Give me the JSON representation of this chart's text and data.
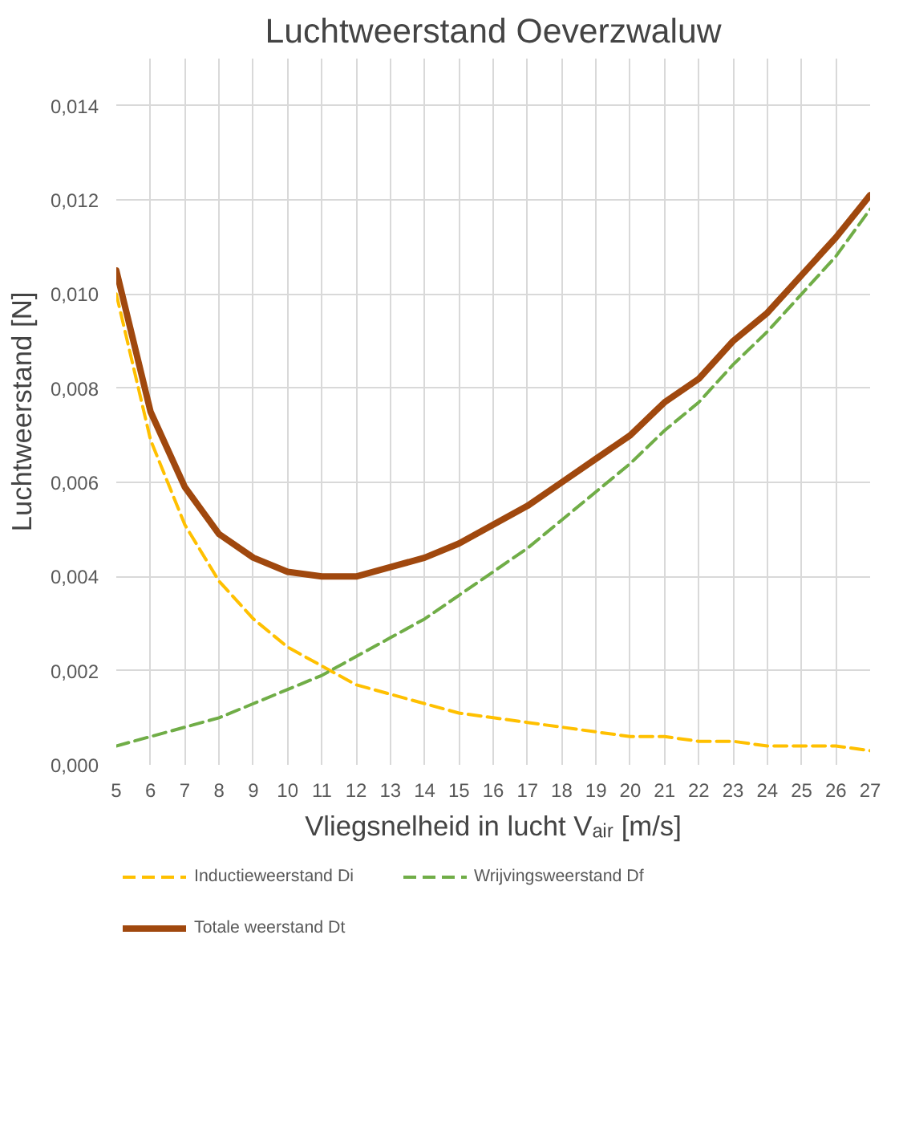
{
  "chart_data": {
    "type": "line",
    "title": "Luchtweerstand Oeverzwaluw",
    "xlabel": "Vliegsnelheid in lucht Vₐᵢᵣ [m/s]",
    "ylabel": "Luchtweerstand [N]",
    "x": [
      5,
      6,
      7,
      8,
      9,
      10,
      11,
      12,
      13,
      14,
      15,
      16,
      17,
      18,
      19,
      20,
      21,
      22,
      23,
      24,
      25,
      26,
      27
    ],
    "series": [
      {
        "name": "Inductieweerstand Di",
        "color": "#ffc000",
        "line_style": "dashed",
        "values": [
          0.01,
          0.0069,
          0.0051,
          0.0039,
          0.0031,
          0.0025,
          0.0021,
          0.0017,
          0.0015,
          0.0013,
          0.0011,
          0.001,
          0.0009,
          0.0008,
          0.0007,
          0.0006,
          0.0006,
          0.0005,
          0.0005,
          0.0004,
          0.0004,
          0.0004,
          0.0003
        ]
      },
      {
        "name": "Wrijvingsweerstand Df",
        "color": "#70ad47",
        "line_style": "dashed",
        "values": [
          0.0004,
          0.0006,
          0.0008,
          0.001,
          0.0013,
          0.0016,
          0.0019,
          0.0023,
          0.0027,
          0.0031,
          0.0036,
          0.0041,
          0.0046,
          0.0052,
          0.0058,
          0.0064,
          0.0071,
          0.0077,
          0.0085,
          0.0092,
          0.01,
          0.0108,
          0.0118
        ]
      },
      {
        "name": "Totale weerstand Dt",
        "color": "#a0480e",
        "line_style": "solid",
        "values": [
          0.0105,
          0.0075,
          0.0059,
          0.0049,
          0.0044,
          0.0041,
          0.004,
          0.004,
          0.0042,
          0.0044,
          0.0047,
          0.0051,
          0.0055,
          0.006,
          0.0065,
          0.007,
          0.0077,
          0.0082,
          0.009,
          0.0096,
          0.0104,
          0.0112,
          0.0121
        ]
      }
    ],
    "xlim": [
      5,
      27
    ],
    "xticks": [
      5,
      6,
      7,
      8,
      9,
      10,
      11,
      12,
      13,
      14,
      15,
      16,
      17,
      18,
      19,
      20,
      21,
      22,
      23,
      24,
      25,
      26,
      27
    ],
    "ylim": [
      0,
      0.015
    ],
    "yticks": [
      {
        "value": 0,
        "label": "0,000"
      },
      {
        "value": 0.002,
        "label": "0,002"
      },
      {
        "value": 0.004,
        "label": "0,004"
      },
      {
        "value": 0.006,
        "label": "0,006"
      },
      {
        "value": 0.008,
        "label": "0,008"
      },
      {
        "value": 0.01,
        "label": "0,010"
      },
      {
        "value": 0.012,
        "label": "0,012"
      },
      {
        "value": 0.014,
        "label": "0,014"
      }
    ],
    "grid": true,
    "legend": "bottom",
    "marker": "none"
  }
}
